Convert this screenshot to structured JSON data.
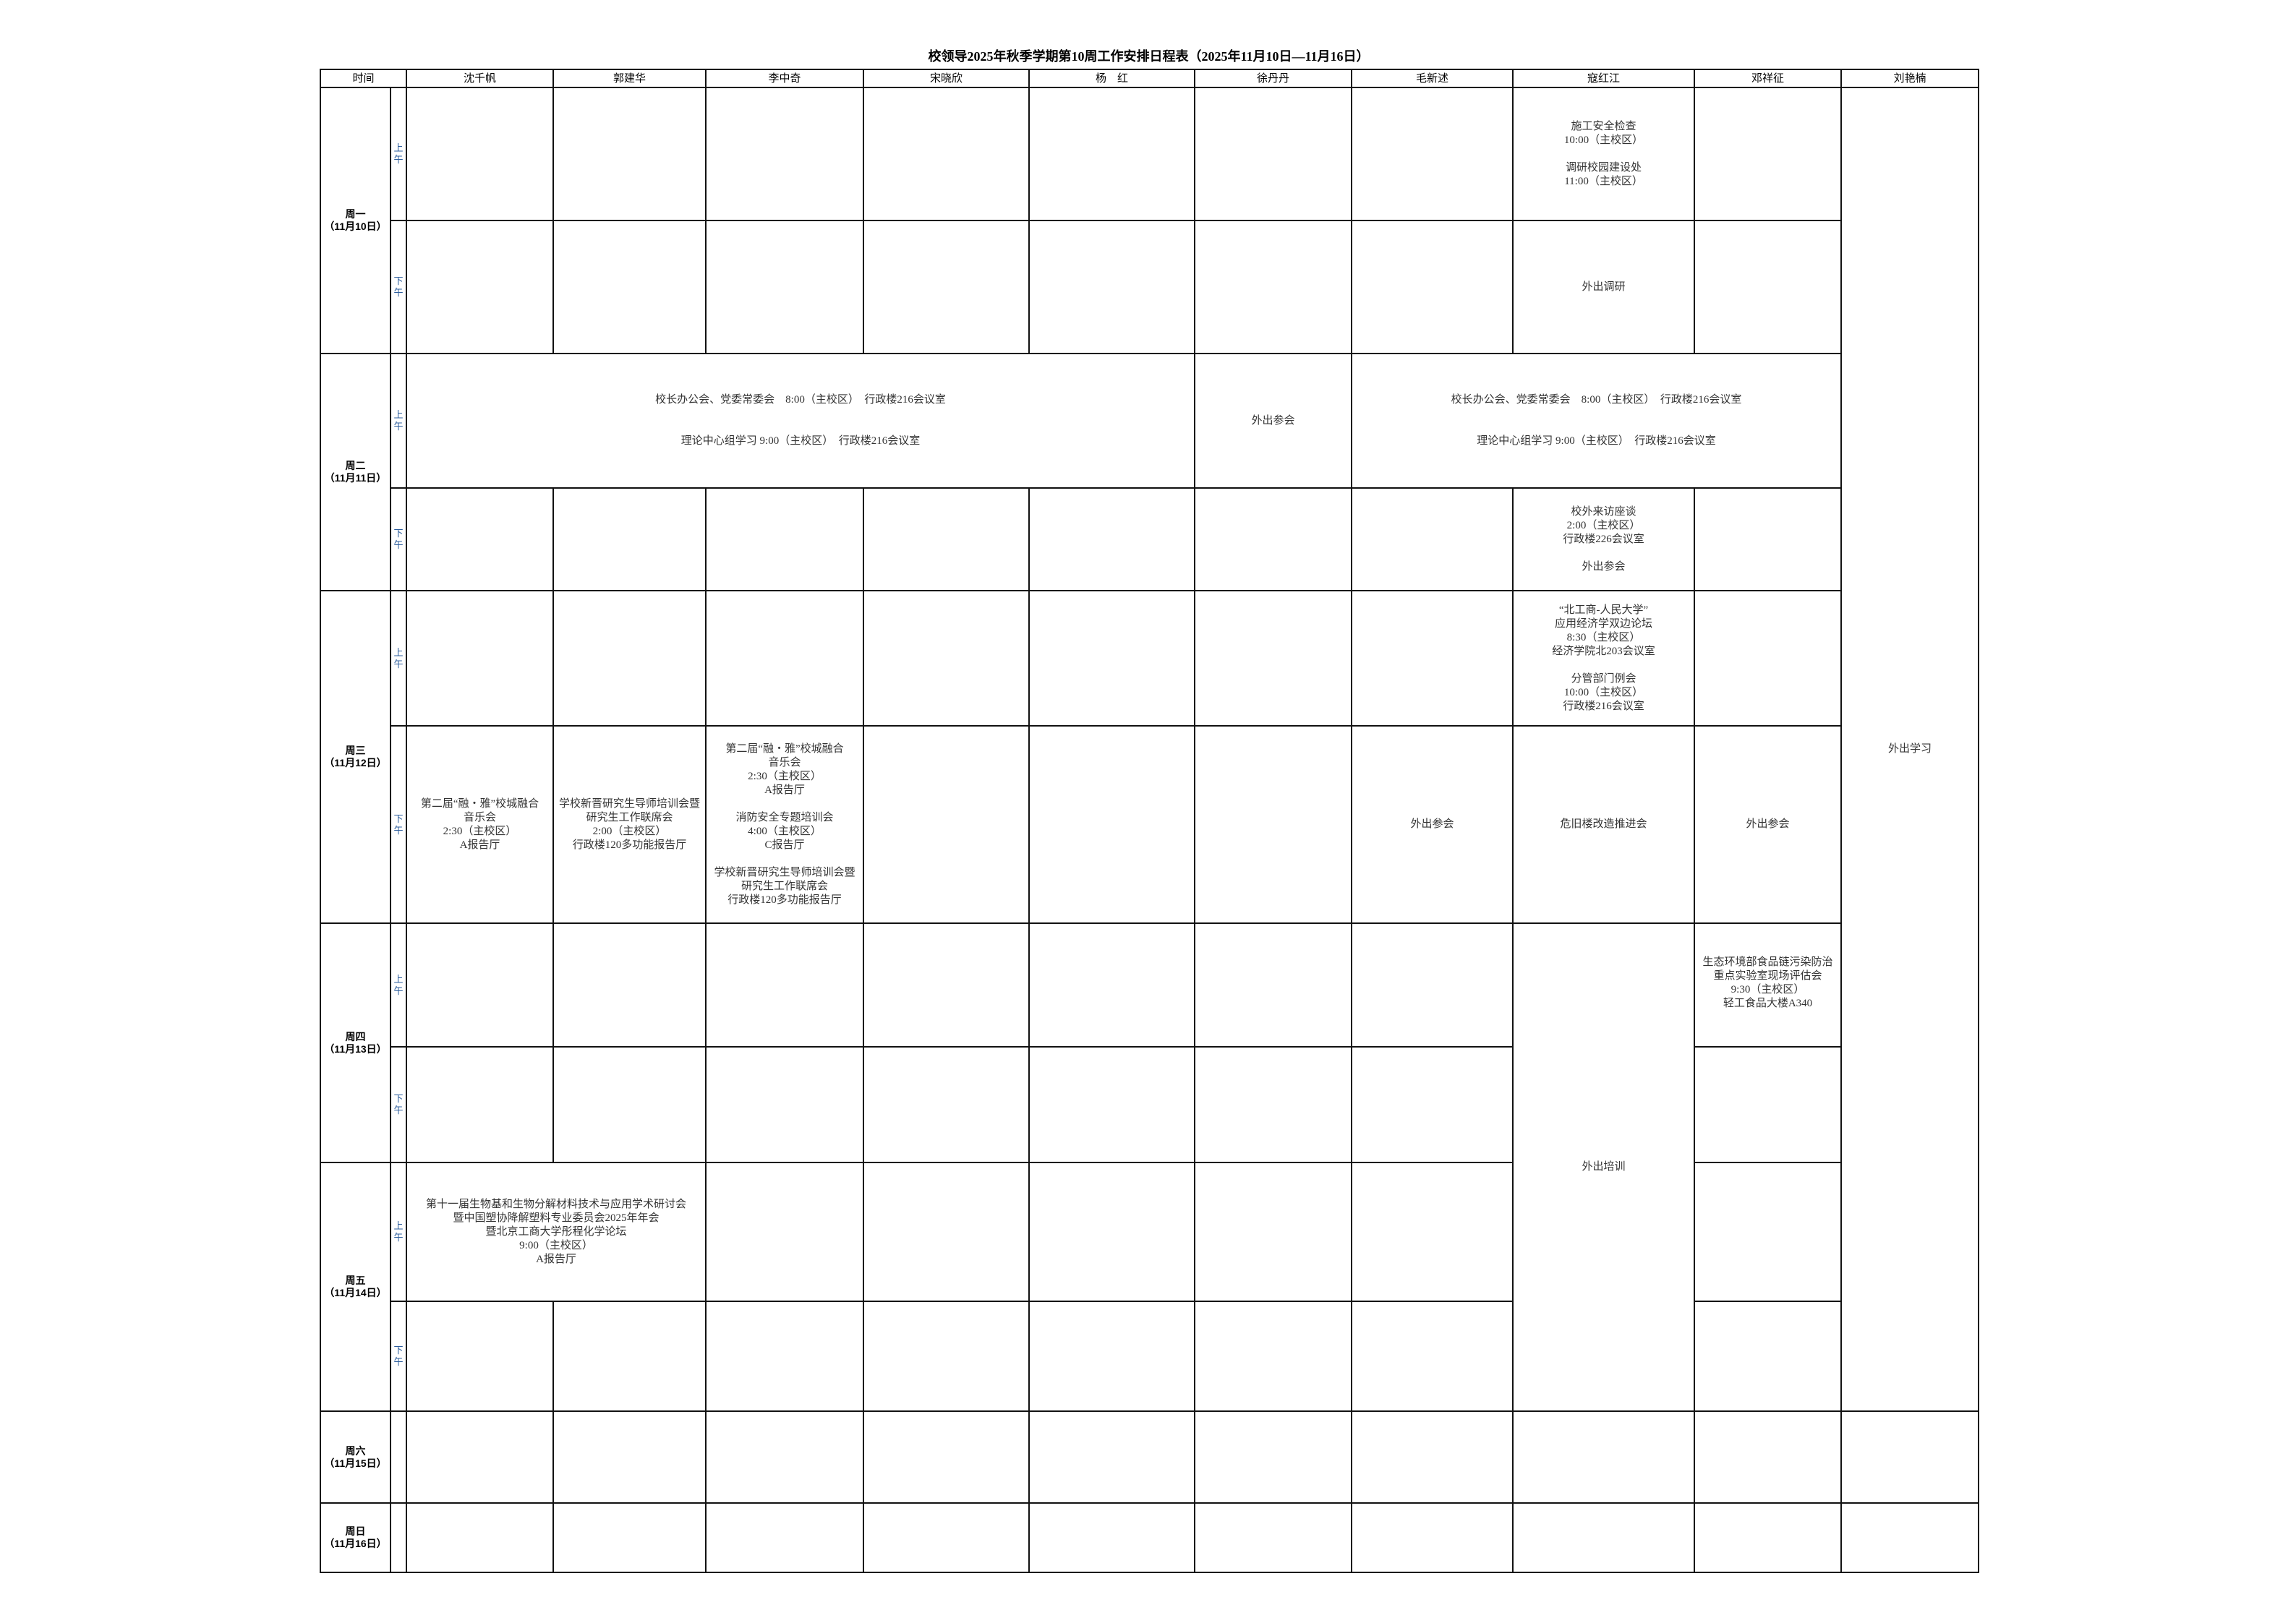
{
  "title": "校领导2025年秋季学期第10周工作安排日程表（2025年11月10日—11月16日）",
  "header": {
    "time": "时间",
    "leaders": [
      "沈千帆",
      "郭建华",
      "李中奇",
      "宋晓欣",
      "杨　红",
      "徐丹丹",
      "毛新述",
      "寇红江",
      "邓祥征",
      "刘艳楠"
    ]
  },
  "days": [
    {
      "name": "周一",
      "date": "（11月10日）"
    },
    {
      "name": "周二",
      "date": "（11月11日）"
    },
    {
      "name": "周三",
      "date": "（11月12日）"
    },
    {
      "name": "周四",
      "date": "（11月13日）"
    },
    {
      "name": "周五",
      "date": "（11月14日）"
    },
    {
      "name": "周六",
      "date": "（11月15日）"
    },
    {
      "name": "周日",
      "date": "（11月16日）"
    }
  ],
  "periods": {
    "am": "上午",
    "pm": "下午"
  },
  "events": {
    "mon_am_kou": "施工安全检查\n10:00（主校区）\n\n调研校园建设处\n11:00（主校区）",
    "mon_pm_kou": "外出调研",
    "liu_mon_fri": "外出学习",
    "tue_am_group1": "校长办公会、党委常委会　8:00（主校区）　行政楼216会议室\n\n\n理论中心组学习 9:00（主校区）　行政楼216会议室",
    "tue_am_xu": "外出参会",
    "tue_am_group2": "校长办公会、党委常委会　8:00（主校区）　行政楼216会议室\n\n\n理论中心组学习 9:00（主校区）　行政楼216会议室",
    "tue_pm_kou": "校外来访座谈\n2:00（主校区）\n行政楼226会议室\n\n外出参会",
    "wed_am_kou": "“北工商-人民大学”\n应用经济学双边论坛\n8:30（主校区）\n经济学院北203会议室\n\n分管部门例会\n10:00（主校区）\n行政楼216会议室",
    "wed_pm_shen": "第二届“融・雅”校城融合\n音乐会\n2:30（主校区）\nA报告厅",
    "wed_pm_guo": "学校新晋研究生导师培训会暨\n研究生工作联席会\n2:00（主校区）\n行政楼120多功能报告厅",
    "wed_pm_li": "第二届“融・雅”校城融合\n音乐会\n2:30（主校区）\nA报告厅\n\n消防安全专题培训会\n4:00（主校区）\nC报告厅\n\n学校新晋研究生导师培训会暨\n研究生工作联席会\n行政楼120多功能报告厅",
    "wed_pm_mao": "外出参会",
    "wed_pm_kou": "危旧楼改造推进会",
    "wed_pm_deng": "外出参会",
    "thu_fri_kou": "外出培训",
    "thu_am_deng": "生态环境部食品链污染防治\n重点实验室现场评估会\n9:30（主校区）\n轻工食品大楼A340",
    "fri_am_shen_guo": "第十一届生物基和生物分解材料技术与应用学术研讨会\n暨中国塑协降解塑料专业委员会2025年年会\n暨北京工商大学彤程化学论坛\n9:00（主校区）\nA报告厅"
  }
}
